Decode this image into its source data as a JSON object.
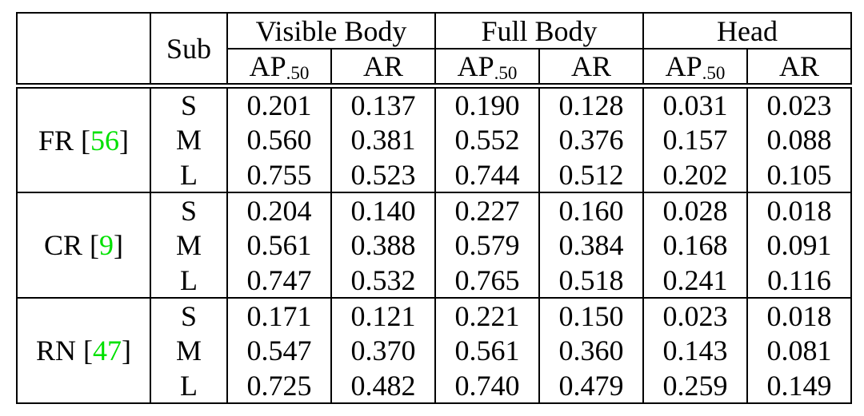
{
  "table": {
    "corner_label": "",
    "sub_col_header": "Sub",
    "group_headers": [
      "Visible Body",
      "Full Body",
      "Head"
    ],
    "metric_ap_base": "AP",
    "metric_ap_subscript": ".50",
    "metric_ar": "AR",
    "groups": [
      {
        "method_prefix": "FR [",
        "citation_number": "56",
        "method_suffix": "]",
        "rows": [
          {
            "sub": "S",
            "values": [
              "0.201",
              "0.137",
              "0.190",
              "0.128",
              "0.031",
              "0.023"
            ]
          },
          {
            "sub": "M",
            "values": [
              "0.560",
              "0.381",
              "0.552",
              "0.376",
              "0.157",
              "0.088"
            ]
          },
          {
            "sub": "L",
            "values": [
              "0.755",
              "0.523",
              "0.744",
              "0.512",
              "0.202",
              "0.105"
            ]
          }
        ]
      },
      {
        "method_prefix": "CR [",
        "citation_number": "9",
        "method_suffix": "]",
        "rows": [
          {
            "sub": "S",
            "values": [
              "0.204",
              "0.140",
              "0.227",
              "0.160",
              "0.028",
              "0.018"
            ]
          },
          {
            "sub": "M",
            "values": [
              "0.561",
              "0.388",
              "0.579",
              "0.384",
              "0.168",
              "0.091"
            ]
          },
          {
            "sub": "L",
            "values": [
              "0.747",
              "0.532",
              "0.765",
              "0.518",
              "0.241",
              "0.116"
            ]
          }
        ]
      },
      {
        "method_prefix": "RN [",
        "citation_number": "47",
        "method_suffix": "]",
        "rows": [
          {
            "sub": "S",
            "values": [
              "0.171",
              "0.121",
              "0.221",
              "0.150",
              "0.023",
              "0.018"
            ]
          },
          {
            "sub": "M",
            "values": [
              "0.547",
              "0.370",
              "0.561",
              "0.360",
              "0.143",
              "0.081"
            ]
          },
          {
            "sub": "L",
            "values": [
              "0.725",
              "0.482",
              "0.740",
              "0.479",
              "0.259",
              "0.149"
            ]
          }
        ]
      }
    ]
  },
  "colors": {
    "citation_green": "#00e100",
    "border_black": "#000000",
    "background": "#ffffff"
  }
}
